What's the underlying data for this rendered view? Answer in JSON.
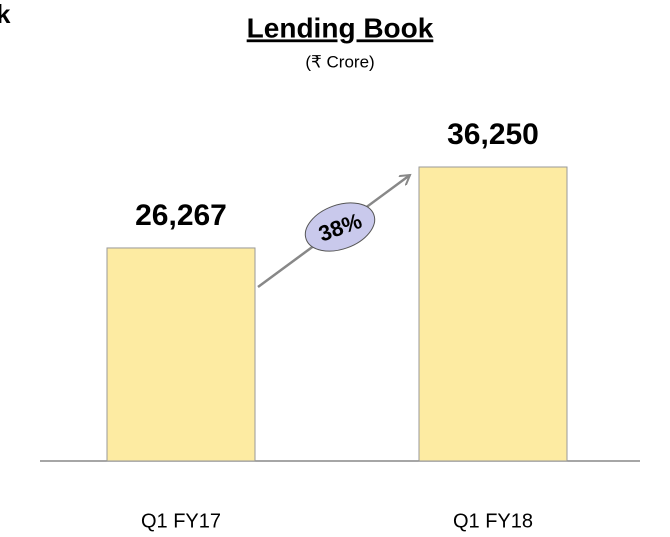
{
  "corner_text": "k",
  "chart_data": {
    "type": "bar",
    "title": "Lending Book",
    "subtitle": "(₹ Crore)",
    "categories": [
      "Q1 FY17",
      "Q1 FY18"
    ],
    "values": [
      26267,
      36250
    ],
    "value_labels": [
      "26,267",
      "36,250"
    ],
    "color": "#fdeba2",
    "annotation": "38%"
  }
}
